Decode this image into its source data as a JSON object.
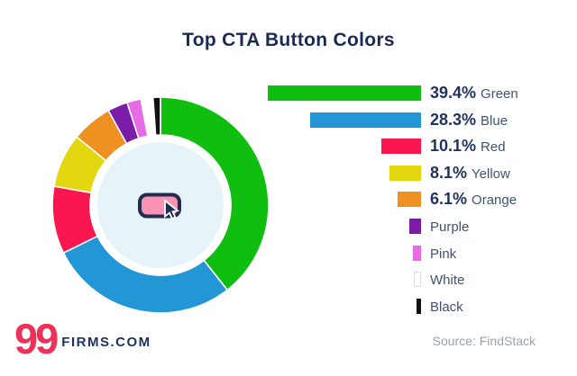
{
  "title": "Top CTA Button Colors",
  "source": "Source: FindStack",
  "logo": {
    "number": "99",
    "text": "FIRMS.COM"
  },
  "center_icon": "cta-button-cursor-icon",
  "colors": {
    "title_navy": "#1A2A52",
    "pct_navy": "#21335C",
    "name_slate": "#42536F",
    "logo_pink": "#EB3359",
    "source_gray": "#98A1B0",
    "donut_hole": "#E6F3F9",
    "button_pink": "#F893B3",
    "button_outline": "#232B50"
  },
  "chart_data": {
    "type": "pie",
    "subtype": "donut",
    "title": "Top CTA Button Colors",
    "start_angle_deg": 0,
    "direction": "clockwise",
    "legend_position": "right",
    "legend_style": "right-aligned bars proportional to value",
    "segments": [
      {
        "name": "Green",
        "value": 39.4,
        "label": "39.4%",
        "color": "#10BE10"
      },
      {
        "name": "Blue",
        "value": 28.3,
        "label": "28.3%",
        "color": "#2397D6"
      },
      {
        "name": "Red",
        "value": 10.1,
        "label": "10.1%",
        "color": "#FA1750"
      },
      {
        "name": "Yellow",
        "value": 8.1,
        "label": "8.1%",
        "color": "#E2D70F"
      },
      {
        "name": "Orange",
        "value": 6.1,
        "label": "6.1%",
        "color": "#EF9120"
      },
      {
        "name": "Purple",
        "value": 3.0,
        "label": "",
        "color": "#7A1CA8"
      },
      {
        "name": "Pink",
        "value": 2.1,
        "label": "",
        "color": "#E76BE7"
      },
      {
        "name": "White",
        "value": 1.8,
        "label": "",
        "color": "#FFFFFF"
      },
      {
        "name": "Black",
        "value": 1.1,
        "label": "",
        "color": "#111111"
      }
    ]
  }
}
